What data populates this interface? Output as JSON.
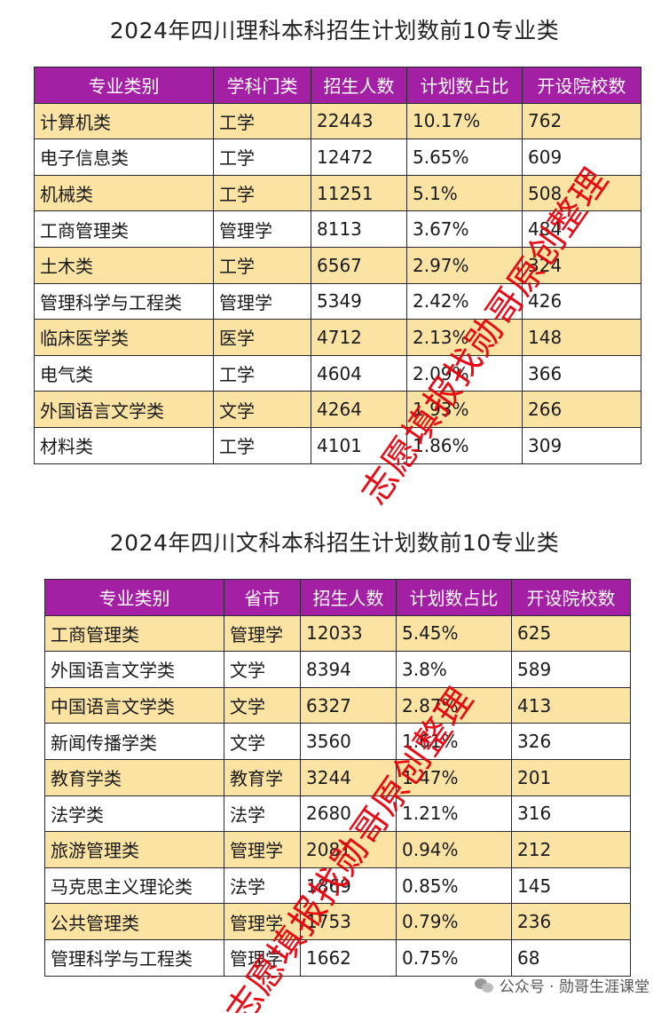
{
  "colors": {
    "header_bg": "#a31fa3",
    "header_text": "#ffffff",
    "row_highlight": "#fbe3a4",
    "row_plain": "#ffffff",
    "watermark": "#e8000b"
  },
  "table1": {
    "title": "2024年四川理科本科招生计划数前10专业类",
    "headers": [
      "专业类别",
      "学科门类",
      "招生人数",
      "计划数占比",
      "开设院校数"
    ],
    "rows": [
      [
        "计算机类",
        "工学",
        "22443",
        "10.17%",
        "762"
      ],
      [
        "电子信息类",
        "工学",
        "12472",
        "5.65%",
        "609"
      ],
      [
        "机械类",
        "工学",
        "11251",
        "5.1%",
        "508"
      ],
      [
        "工商管理类",
        "管理学",
        "8113",
        "3.67%",
        "484"
      ],
      [
        "土木类",
        "工学",
        "6567",
        "2.97%",
        "324"
      ],
      [
        "管理科学与工程类",
        "管理学",
        "5349",
        "2.42%",
        "426"
      ],
      [
        "临床医学类",
        "医学",
        "4712",
        "2.13%",
        "148"
      ],
      [
        "电气类",
        "工学",
        "4604",
        "2.09%",
        "366"
      ],
      [
        "外国语言文学类",
        "文学",
        "4264",
        "1.93%",
        "266"
      ],
      [
        "材料类",
        "工学",
        "4101",
        "1.86%",
        "309"
      ]
    ]
  },
  "table2": {
    "title": "2024年四川文科本科招生计划数前10专业类",
    "headers": [
      "专业类别",
      "省市",
      "招生人数",
      "计划数占比",
      "开设院校数"
    ],
    "rows": [
      [
        "工商管理类",
        "管理学",
        "12033",
        "5.45%",
        "625"
      ],
      [
        "外国语言文学类",
        "文学",
        "8394",
        "3.8%",
        "589"
      ],
      [
        "中国语言文学类",
        "文学",
        "6327",
        "2.87%",
        "413"
      ],
      [
        "新闻传播学类",
        "文学",
        "3560",
        "1.61%",
        "326"
      ],
      [
        "教育学类",
        "教育学",
        "3244",
        "1.47%",
        "201"
      ],
      [
        "法学类",
        "法学",
        "2680",
        "1.21%",
        "316"
      ],
      [
        "旅游管理类",
        "管理学",
        "2081",
        "0.94%",
        "212"
      ],
      [
        "马克思主义理论类",
        "法学",
        "1869",
        "0.85%",
        "145"
      ],
      [
        "公共管理类",
        "管理学",
        "1753",
        "0.79%",
        "236"
      ],
      [
        "管理科学与工程类",
        "管理学",
        "1662",
        "0.75%",
        "68"
      ]
    ]
  },
  "watermark": {
    "text1": "志愿填报找勋哥原创整理",
    "text2": "志愿填报找勋哥原创整理"
  },
  "footer": {
    "icon": "wechat-icon",
    "text": "公众号 · 勋哥生涯课堂"
  }
}
